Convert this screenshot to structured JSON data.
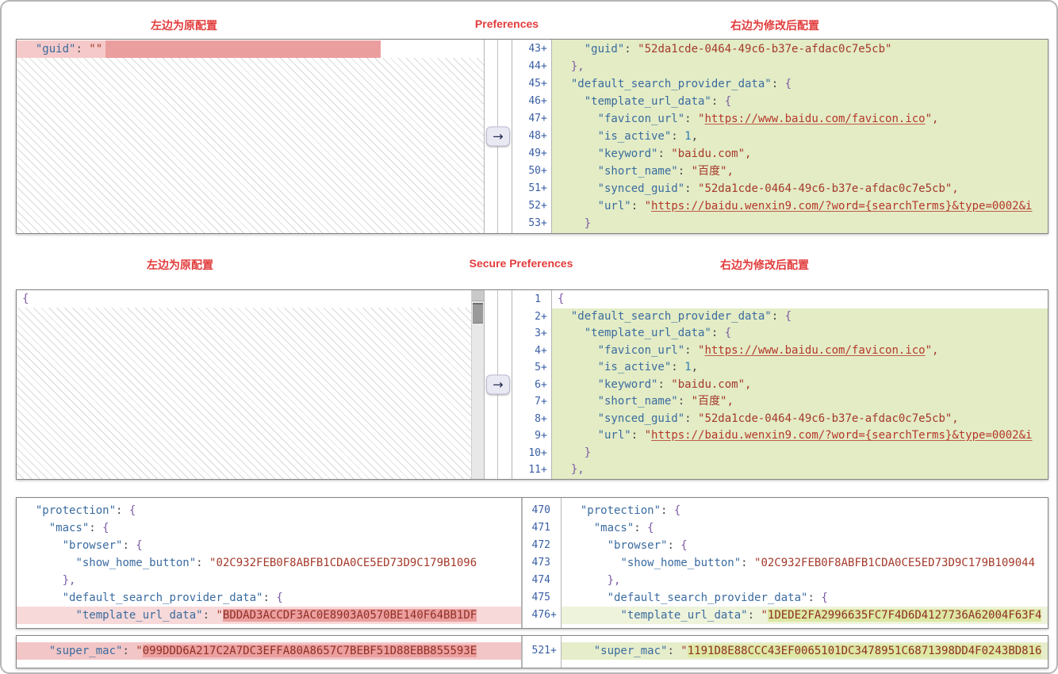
{
  "icons": {
    "merge_arrow": "→",
    "scrollbar": "vertical-scrollbar"
  },
  "colors": {
    "label_red": "#e23c3c",
    "added_line_green": "#e3ecc5",
    "added_value_green": "#dde8a3",
    "removed_line_pink": "#f5c9c9",
    "removed_value_pink": "#ec9f9f",
    "line_number_blue": "#3a5fa5",
    "key_blue": "#3a6b9f",
    "string_red": "#a5392a"
  },
  "panels": [
    {
      "title": "Preferences",
      "left_label": "左边为原配置",
      "right_label": "右边为修改后配置",
      "left": {
        "hatch": true,
        "lines": [
          {
            "bg": "delbar",
            "seg": [
              [
                "pl",
                "  "
              ],
              [
                "k",
                "\"guid\""
              ],
              [
                "pl",
                ": "
              ],
              [
                "s",
                "\"\""
              ]
            ]
          }
        ]
      },
      "right": {
        "lines": [
          {
            "n": "43+",
            "bg": "g",
            "seg": [
              [
                "pl",
                "    "
              ],
              [
                "k",
                "\"guid\""
              ],
              [
                "pl",
                ": "
              ],
              [
                "s",
                "\"52da1cde-0464-49c6-b37e-afdac0c7e5cb\""
              ]
            ]
          },
          {
            "n": "44+",
            "bg": "g",
            "seg": [
              [
                "pl",
                "  "
              ],
              [
                "b",
                "},"
              ]
            ]
          },
          {
            "n": "45+",
            "bg": "g",
            "seg": [
              [
                "pl",
                "  "
              ],
              [
                "k",
                "\"default_search_provider_data\""
              ],
              [
                "pl",
                ": "
              ],
              [
                "b",
                "{"
              ]
            ]
          },
          {
            "n": "46+",
            "bg": "g",
            "seg": [
              [
                "pl",
                "    "
              ],
              [
                "k",
                "\"template_url_data\""
              ],
              [
                "pl",
                ": "
              ],
              [
                "b",
                "{"
              ]
            ]
          },
          {
            "n": "47+",
            "bg": "g",
            "seg": [
              [
                "pl",
                "      "
              ],
              [
                "k",
                "\"favicon_url\""
              ],
              [
                "pl",
                ": "
              ],
              [
                "s",
                "\""
              ],
              [
                "u",
                "https://www.baidu.com/favicon.ico"
              ],
              [
                "s",
                "\","
              ]
            ]
          },
          {
            "n": "48+",
            "bg": "g",
            "seg": [
              [
                "pl",
                "      "
              ],
              [
                "k",
                "\"is_active\""
              ],
              [
                "pl",
                ": "
              ],
              [
                "n",
                "1"
              ],
              [
                "pl",
                ","
              ]
            ]
          },
          {
            "n": "49+",
            "bg": "g",
            "seg": [
              [
                "pl",
                "      "
              ],
              [
                "k",
                "\"keyword\""
              ],
              [
                "pl",
                ": "
              ],
              [
                "s",
                "\"baidu.com\","
              ]
            ]
          },
          {
            "n": "50+",
            "bg": "g",
            "seg": [
              [
                "pl",
                "      "
              ],
              [
                "k",
                "\"short_name\""
              ],
              [
                "pl",
                ": "
              ],
              [
                "s",
                "\"百度\","
              ]
            ]
          },
          {
            "n": "51+",
            "bg": "g",
            "seg": [
              [
                "pl",
                "      "
              ],
              [
                "k",
                "\"synced_guid\""
              ],
              [
                "pl",
                ": "
              ],
              [
                "s",
                "\"52da1cde-0464-49c6-b37e-afdac0c7e5cb\","
              ]
            ]
          },
          {
            "n": "52+",
            "bg": "g",
            "seg": [
              [
                "pl",
                "      "
              ],
              [
                "k",
                "\"url\""
              ],
              [
                "pl",
                ": "
              ],
              [
                "s",
                "\""
              ],
              [
                "u",
                "https://baidu.wenxin9.com/?word={searchTerms}&type=0002&i"
              ]
            ]
          },
          {
            "n": "53+",
            "bg": "g",
            "seg": [
              [
                "pl",
                "    "
              ],
              [
                "b",
                "}"
              ]
            ]
          }
        ]
      }
    },
    {
      "title": "Secure Preferences",
      "left_label": "左边为原配置",
      "right_label": "右边为修改后配置",
      "left": {
        "hatch": true,
        "scrollbar": true,
        "lines": [
          {
            "bg": "w",
            "seg": [
              [
                "b",
                "{"
              ]
            ]
          }
        ]
      },
      "right": {
        "lines": [
          {
            "n": "1",
            "bg": "w",
            "seg": [
              [
                "b",
                "{"
              ]
            ]
          },
          {
            "n": "2+",
            "bg": "g",
            "seg": [
              [
                "pl",
                "  "
              ],
              [
                "k",
                "\"default_search_provider_data\""
              ],
              [
                "pl",
                ": "
              ],
              [
                "b",
                "{"
              ]
            ]
          },
          {
            "n": "3+",
            "bg": "g",
            "seg": [
              [
                "pl",
                "    "
              ],
              [
                "k",
                "\"template_url_data\""
              ],
              [
                "pl",
                ": "
              ],
              [
                "b",
                "{"
              ]
            ]
          },
          {
            "n": "4+",
            "bg": "g",
            "seg": [
              [
                "pl",
                "      "
              ],
              [
                "k",
                "\"favicon_url\""
              ],
              [
                "pl",
                ": "
              ],
              [
                "s",
                "\""
              ],
              [
                "u",
                "https://www.baidu.com/favicon.ico"
              ],
              [
                "s",
                "\","
              ]
            ]
          },
          {
            "n": "5+",
            "bg": "g",
            "seg": [
              [
                "pl",
                "      "
              ],
              [
                "k",
                "\"is_active\""
              ],
              [
                "pl",
                ": "
              ],
              [
                "n",
                "1"
              ],
              [
                "pl",
                ","
              ]
            ]
          },
          {
            "n": "6+",
            "bg": "g",
            "seg": [
              [
                "pl",
                "      "
              ],
              [
                "k",
                "\"keyword\""
              ],
              [
                "pl",
                ": "
              ],
              [
                "s",
                "\"baidu.com\","
              ]
            ]
          },
          {
            "n": "7+",
            "bg": "g",
            "seg": [
              [
                "pl",
                "      "
              ],
              [
                "k",
                "\"short_name\""
              ],
              [
                "pl",
                ": "
              ],
              [
                "s",
                "\"百度\","
              ]
            ]
          },
          {
            "n": "8+",
            "bg": "g",
            "seg": [
              [
                "pl",
                "      "
              ],
              [
                "k",
                "\"synced_guid\""
              ],
              [
                "pl",
                ": "
              ],
              [
                "s",
                "\"52da1cde-0464-49c6-b37e-afdac0c7e5cb\","
              ]
            ]
          },
          {
            "n": "9+",
            "bg": "g",
            "seg": [
              [
                "pl",
                "      "
              ],
              [
                "k",
                "\"url\""
              ],
              [
                "pl",
                ": "
              ],
              [
                "s",
                "\""
              ],
              [
                "u",
                "https://baidu.wenxin9.com/?word={searchTerms}&type=0002&i"
              ]
            ]
          },
          {
            "n": "10+",
            "bg": "g",
            "seg": [
              [
                "pl",
                "    "
              ],
              [
                "b",
                "}"
              ]
            ]
          },
          {
            "n": "11+",
            "bg": "g",
            "seg": [
              [
                "pl",
                "  "
              ],
              [
                "b",
                "},"
              ]
            ]
          }
        ]
      }
    },
    {
      "left": {
        "lines": [
          {
            "bg": "w",
            "seg": [
              [
                "pl",
                "  "
              ],
              [
                "k",
                "\"protection\""
              ],
              [
                "pl",
                ": "
              ],
              [
                "b",
                "{"
              ]
            ]
          },
          {
            "bg": "w",
            "seg": [
              [
                "pl",
                "    "
              ],
              [
                "k",
                "\"macs\""
              ],
              [
                "pl",
                ": "
              ],
              [
                "b",
                "{"
              ]
            ]
          },
          {
            "bg": "w",
            "seg": [
              [
                "pl",
                "      "
              ],
              [
                "k",
                "\"browser\""
              ],
              [
                "pl",
                ": "
              ],
              [
                "b",
                "{"
              ]
            ]
          },
          {
            "bg": "w",
            "seg": [
              [
                "pl",
                "        "
              ],
              [
                "k",
                "\"show_home_button\""
              ],
              [
                "pl",
                ": "
              ],
              [
                "s",
                "\"02C932FEB0F8ABFB1CDA0CE5ED73D9C179B1096"
              ]
            ]
          },
          {
            "bg": "w",
            "seg": [
              [
                "pl",
                "      "
              ],
              [
                "b",
                "},"
              ]
            ]
          },
          {
            "bg": "w",
            "seg": [
              [
                "pl",
                "      "
              ],
              [
                "k",
                "\"default_search_provider_data\""
              ],
              [
                "pl",
                ": "
              ],
              [
                "b",
                "{"
              ]
            ]
          },
          {
            "bg": "pk3",
            "seg": [
              [
                "pl",
                "        "
              ],
              [
                "k",
                "\"template_url_data\""
              ],
              [
                "pl",
                ": "
              ],
              [
                "s",
                "\""
              ],
              [
                "hpk",
                "BDDAD3ACCDF3AC0E8903A0570BE140F64BB1DF"
              ]
            ]
          }
        ]
      },
      "right": {
        "lines": [
          {
            "n": "470",
            "bg": "w",
            "seg": [
              [
                "pl",
                "  "
              ],
              [
                "k",
                "\"protection\""
              ],
              [
                "pl",
                ": "
              ],
              [
                "b",
                "{"
              ]
            ]
          },
          {
            "n": "471",
            "bg": "w",
            "seg": [
              [
                "pl",
                "    "
              ],
              [
                "k",
                "\"macs\""
              ],
              [
                "pl",
                ": "
              ],
              [
                "b",
                "{"
              ]
            ]
          },
          {
            "n": "472",
            "bg": "w",
            "seg": [
              [
                "pl",
                "      "
              ],
              [
                "k",
                "\"browser\""
              ],
              [
                "pl",
                ": "
              ],
              [
                "b",
                "{"
              ]
            ]
          },
          {
            "n": "473",
            "bg": "w",
            "seg": [
              [
                "pl",
                "        "
              ],
              [
                "k",
                "\"show_home_button\""
              ],
              [
                "pl",
                ": "
              ],
              [
                "s",
                "\"02C932FEB0F8ABFB1CDA0CE5ED73D9C179B109044"
              ]
            ]
          },
          {
            "n": "474",
            "bg": "w",
            "seg": [
              [
                "pl",
                "      "
              ],
              [
                "b",
                "},"
              ]
            ]
          },
          {
            "n": "475",
            "bg": "w",
            "seg": [
              [
                "pl",
                "      "
              ],
              [
                "k",
                "\"default_search_provider_data\""
              ],
              [
                "pl",
                ": "
              ],
              [
                "b",
                "{"
              ]
            ]
          },
          {
            "n": "476+",
            "bg": "gr3",
            "seg": [
              [
                "pl",
                "        "
              ],
              [
                "k",
                "\"template_url_data\""
              ],
              [
                "pl",
                ": "
              ],
              [
                "s",
                "\""
              ],
              [
                "hgr",
                "1DEDE2FA2996635FC7F4D6D4127736A62004F63F4"
              ]
            ]
          }
        ]
      }
    },
    {
      "left": {
        "lines": [
          {
            "bg": "pk4",
            "seg": [
              [
                "pl",
                "    "
              ],
              [
                "k",
                "\"super_mac\""
              ],
              [
                "pl",
                ": "
              ],
              [
                "s",
                "\""
              ],
              [
                "hpk",
                "099DDD6A217C2A7DC3EFFA80A8657C7BEBF51D88EBB855593E"
              ]
            ]
          }
        ]
      },
      "right": {
        "lines": [
          {
            "n": "521+",
            "bg": "g4",
            "seg": [
              [
                "pl",
                "    "
              ],
              [
                "k",
                "\"super_mac\""
              ],
              [
                "pl",
                ": "
              ],
              [
                "s",
                "\""
              ],
              [
                "hgr",
                "1191D8E88CCC43EF0065101DC3478951C6871398DD4F0243BD816"
              ]
            ]
          }
        ]
      }
    }
  ]
}
